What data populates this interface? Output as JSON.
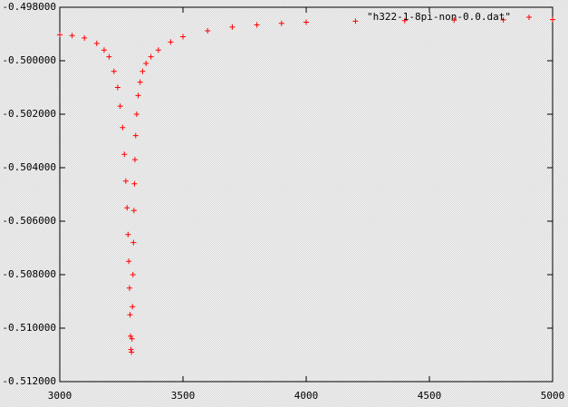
{
  "chart_data": {
    "type": "scatter",
    "xlim": [
      3000,
      5000
    ],
    "xticks": [
      3000,
      3500,
      4000,
      4500,
      5000
    ],
    "ylim": [
      -0.512,
      -0.498
    ],
    "yticks": [
      {
        "value": -0.498,
        "label": "-0.498000"
      },
      {
        "value": -0.5,
        "label": "-0.500000"
      },
      {
        "value": -0.502,
        "label": "-0.502000"
      },
      {
        "value": -0.504,
        "label": "-0.504000"
      },
      {
        "value": -0.506,
        "label": "-0.506000"
      },
      {
        "value": -0.508,
        "label": "-0.508000"
      },
      {
        "value": -0.51,
        "label": "-0.510000"
      },
      {
        "value": -0.512,
        "label": "-0.512000"
      }
    ],
    "legend": "upper right",
    "series": [
      {
        "name": "\"h322-1-8pi-non-0.0.dat\"",
        "color": "#ff0000",
        "x": [
          3000,
          3050,
          3100,
          3150,
          3180,
          3200,
          3220,
          3235,
          3245,
          3255,
          3262,
          3268,
          3273,
          3277,
          3280,
          3283,
          3285,
          3287,
          3289,
          3291,
          3293,
          3295,
          3297,
          3299,
          3301,
          3303,
          3305,
          3308,
          3312,
          3318,
          3326,
          3336,
          3350,
          3370,
          3400,
          3450,
          3500,
          3600,
          3700,
          3800,
          3900,
          4000,
          4200,
          4400,
          4600,
          4800,
          5000
        ],
        "values": [
          -0.49903,
          -0.49906,
          -0.49915,
          -0.49935,
          -0.4996,
          -0.49985,
          -0.5004,
          -0.501,
          -0.5017,
          -0.5025,
          -0.5035,
          -0.5045,
          -0.5055,
          -0.5065,
          -0.5075,
          -0.5085,
          -0.5095,
          -0.5103,
          -0.5108,
          -0.5109,
          -0.5104,
          -0.5092,
          -0.508,
          -0.5068,
          -0.5056,
          -0.5046,
          -0.5037,
          -0.5028,
          -0.502,
          -0.5013,
          -0.5008,
          -0.5004,
          -0.5001,
          -0.49985,
          -0.4996,
          -0.4993,
          -0.4991,
          -0.49888,
          -0.49874,
          -0.49866,
          -0.4986,
          -0.49856,
          -0.49852,
          -0.4985,
          -0.49848,
          -0.49847,
          -0.49846
        ]
      }
    ]
  }
}
